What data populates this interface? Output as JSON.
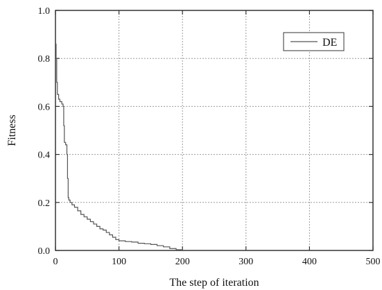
{
  "chart_data": {
    "type": "line",
    "xlabel": "The step of iteration",
    "ylabel": "Fitness",
    "xlim": [
      0,
      500
    ],
    "ylim": [
      0,
      1.0
    ],
    "x_ticks": [
      0,
      100,
      200,
      300,
      400,
      500
    ],
    "y_ticks": [
      0.0,
      0.2,
      0.4,
      0.6,
      0.8,
      1.0
    ],
    "x_tick_labels": [
      "0",
      "100",
      "200",
      "300",
      "400",
      "500"
    ],
    "y_tick_labels": [
      "0.0",
      "0.2",
      "0.4",
      "0.6",
      "0.8",
      "1.0"
    ],
    "grid": true,
    "legend_position": "top-right",
    "series": [
      {
        "name": "DE",
        "color": "#555555",
        "x": [
          0,
          1,
          2,
          3,
          5,
          7,
          10,
          12,
          13,
          14,
          16,
          17,
          18,
          19,
          20,
          21,
          23,
          26,
          30,
          35,
          40,
          45,
          50,
          55,
          60,
          65,
          70,
          75,
          80,
          85,
          90,
          95,
          100,
          110,
          120,
          130,
          140,
          150,
          160,
          170,
          180,
          190,
          200
        ],
        "y": [
          0.86,
          0.8,
          0.7,
          0.65,
          0.63,
          0.62,
          0.61,
          0.6,
          0.52,
          0.45,
          0.44,
          0.44,
          0.4,
          0.3,
          0.22,
          0.21,
          0.2,
          0.19,
          0.18,
          0.165,
          0.15,
          0.14,
          0.13,
          0.12,
          0.11,
          0.1,
          0.09,
          0.085,
          0.075,
          0.065,
          0.055,
          0.045,
          0.04,
          0.037,
          0.035,
          0.03,
          0.028,
          0.025,
          0.02,
          0.015,
          0.008,
          0.003,
          0.0
        ]
      }
    ]
  }
}
